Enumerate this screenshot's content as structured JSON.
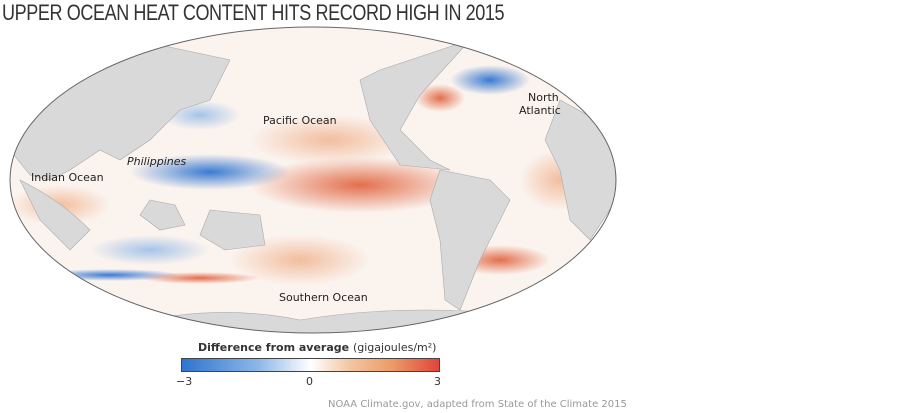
{
  "title": "UPPER OCEAN HEAT CONTENT HITS RECORD HIGH IN 2015",
  "map": {
    "projection": "Mollweide",
    "labels": {
      "pacific": "Pacific Ocean",
      "north_atlantic_1": "North",
      "north_atlantic_2": "Atlantic",
      "philippines": "Philippines",
      "indian": "Indian Ocean",
      "southern": "Southern Ocean"
    },
    "colors": {
      "land": "#d9d9d9",
      "cool": "#2f74d0",
      "warm": "#e0453a",
      "neutral": "#ffffff"
    }
  },
  "legend": {
    "title": "Difference from average",
    "unit": "(gigajoules/m²)",
    "min_label": "−3",
    "mid_label": "0",
    "max_label": "3",
    "range": [
      -3,
      3
    ]
  },
  "credit": "NOAA Climate.gov, adapted from State of the Climate 2015"
}
